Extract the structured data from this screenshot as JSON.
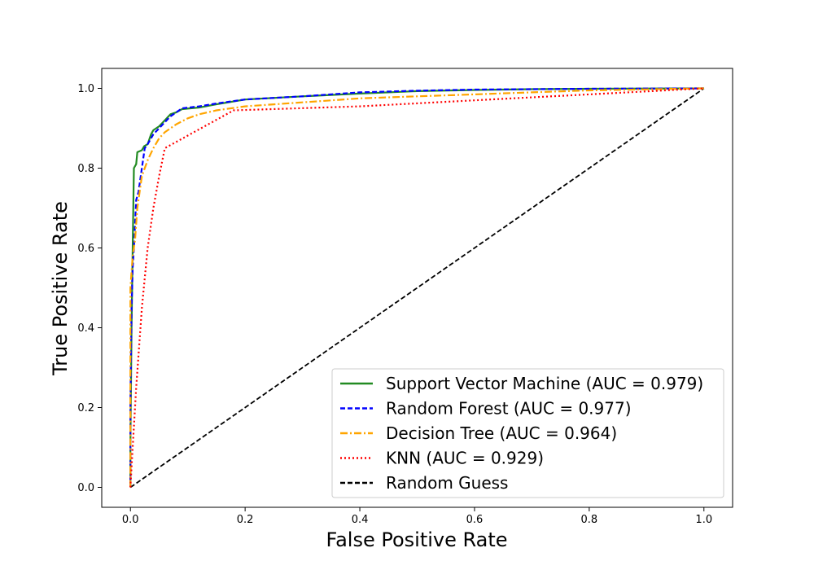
{
  "chart_data": {
    "type": "line",
    "title": "",
    "xlabel": "False Positive Rate",
    "ylabel": "True Positive Rate",
    "xlim": [
      -0.05,
      1.05
    ],
    "ylim": [
      -0.05,
      1.05
    ],
    "xticks": [
      "0.0",
      "0.2",
      "0.4",
      "0.6",
      "0.8",
      "1.0"
    ],
    "yticks": [
      "0.0",
      "0.2",
      "0.4",
      "0.6",
      "0.8",
      "1.0"
    ],
    "grid": false,
    "legend_position": "lower-right",
    "series": [
      {
        "name": "Support Vector Machine (AUC = 0.979)",
        "color": "#228B22",
        "style": "solid",
        "points": [
          [
            0,
            0
          ],
          [
            0,
            0.1
          ],
          [
            0.002,
            0.4
          ],
          [
            0.004,
            0.6
          ],
          [
            0.006,
            0.8
          ],
          [
            0.01,
            0.81
          ],
          [
            0.012,
            0.84
          ],
          [
            0.02,
            0.845
          ],
          [
            0.024,
            0.855
          ],
          [
            0.03,
            0.86
          ],
          [
            0.036,
            0.885
          ],
          [
            0.04,
            0.895
          ],
          [
            0.05,
            0.905
          ],
          [
            0.06,
            0.92
          ],
          [
            0.07,
            0.935
          ],
          [
            0.08,
            0.94
          ],
          [
            0.09,
            0.948
          ],
          [
            0.12,
            0.952
          ],
          [
            0.15,
            0.96
          ],
          [
            0.2,
            0.972
          ],
          [
            0.3,
            0.98
          ],
          [
            0.4,
            0.987
          ],
          [
            0.5,
            0.993
          ],
          [
            0.6,
            0.996
          ],
          [
            0.7,
            0.998
          ],
          [
            0.8,
            0.999
          ],
          [
            1.0,
            1.0
          ]
        ]
      },
      {
        "name": "Random Forest (AUC = 0.977)",
        "color": "#0000FF",
        "style": "dashed",
        "points": [
          [
            0,
            0
          ],
          [
            0,
            0.2
          ],
          [
            0.002,
            0.45
          ],
          [
            0.004,
            0.55
          ],
          [
            0.006,
            0.6
          ],
          [
            0.01,
            0.72
          ],
          [
            0.014,
            0.74
          ],
          [
            0.02,
            0.8
          ],
          [
            0.025,
            0.85
          ],
          [
            0.03,
            0.86
          ],
          [
            0.04,
            0.885
          ],
          [
            0.05,
            0.9
          ],
          [
            0.06,
            0.915
          ],
          [
            0.07,
            0.93
          ],
          [
            0.08,
            0.94
          ],
          [
            0.09,
            0.95
          ],
          [
            0.12,
            0.955
          ],
          [
            0.15,
            0.962
          ],
          [
            0.2,
            0.972
          ],
          [
            0.3,
            0.98
          ],
          [
            0.4,
            0.99
          ],
          [
            0.5,
            0.994
          ],
          [
            0.6,
            0.997
          ],
          [
            0.7,
            0.998
          ],
          [
            0.8,
            0.999
          ],
          [
            1.0,
            1.0
          ]
        ]
      },
      {
        "name": "Decision Tree (AUC = 0.964)",
        "color": "#FFA500",
        "style": "dashdot",
        "points": [
          [
            0,
            0
          ],
          [
            0,
            0.5
          ],
          [
            0.004,
            0.58
          ],
          [
            0.008,
            0.62
          ],
          [
            0.012,
            0.7
          ],
          [
            0.02,
            0.78
          ],
          [
            0.03,
            0.82
          ],
          [
            0.04,
            0.85
          ],
          [
            0.05,
            0.875
          ],
          [
            0.06,
            0.89
          ],
          [
            0.07,
            0.9
          ],
          [
            0.08,
            0.91
          ],
          [
            0.1,
            0.925
          ],
          [
            0.12,
            0.935
          ],
          [
            0.15,
            0.945
          ],
          [
            0.2,
            0.955
          ],
          [
            0.3,
            0.965
          ],
          [
            0.4,
            0.975
          ],
          [
            0.5,
            0.98
          ],
          [
            0.6,
            0.985
          ],
          [
            0.7,
            0.99
          ],
          [
            0.8,
            0.995
          ],
          [
            1.0,
            1.0
          ]
        ]
      },
      {
        "name": "KNN (AUC = 0.929)",
        "color": "#FF0000",
        "style": "dotted",
        "points": [
          [
            0,
            0
          ],
          [
            0.004,
            0.1
          ],
          [
            0.01,
            0.25
          ],
          [
            0.02,
            0.45
          ],
          [
            0.03,
            0.6
          ],
          [
            0.04,
            0.7
          ],
          [
            0.05,
            0.78
          ],
          [
            0.06,
            0.85
          ],
          [
            0.18,
            0.945
          ],
          [
            0.4,
            0.955
          ],
          [
            0.6,
            0.97
          ],
          [
            0.8,
            0.985
          ],
          [
            1.0,
            1.0
          ]
        ]
      },
      {
        "name": "Random Guess",
        "color": "#000000",
        "style": "dashed",
        "points": [
          [
            0,
            0
          ],
          [
            1,
            1
          ]
        ]
      }
    ]
  }
}
